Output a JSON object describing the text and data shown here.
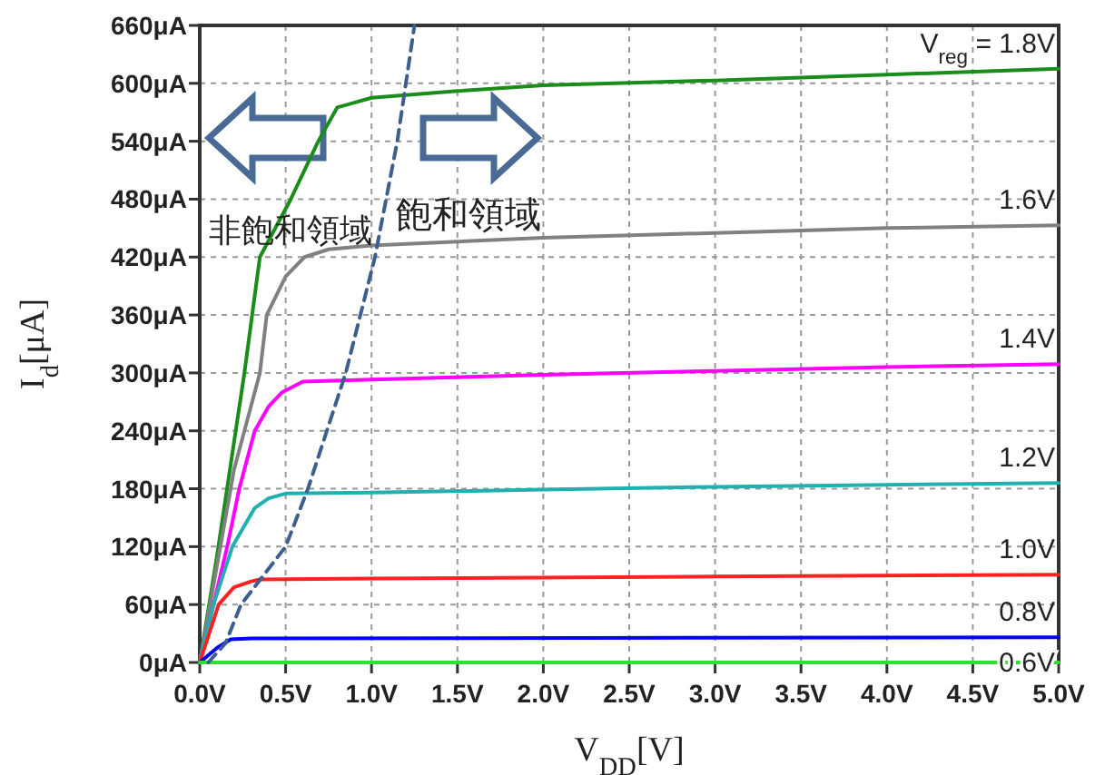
{
  "chart_data": {
    "type": "line",
    "xlabel": "V$_{DD}$[V]",
    "ylabel": "I$_{d}$[μA]",
    "xlim": [
      0,
      5
    ],
    "ylim": [
      0,
      660
    ],
    "xticks": [
      {
        "value": 0,
        "label": "0.0V"
      },
      {
        "value": 0.5,
        "label": "0.5V"
      },
      {
        "value": 1,
        "label": "1.0V"
      },
      {
        "value": 1.5,
        "label": "1.5V"
      },
      {
        "value": 2,
        "label": "2.0V"
      },
      {
        "value": 2.5,
        "label": "2.5V"
      },
      {
        "value": 3,
        "label": "3.0V"
      },
      {
        "value": 3.5,
        "label": "3.5V"
      },
      {
        "value": 4,
        "label": "4.0V"
      },
      {
        "value": 4.5,
        "label": "4.5V"
      },
      {
        "value": 5,
        "label": "5.0V"
      }
    ],
    "yticks": [
      {
        "value": 0,
        "label": "0μA"
      },
      {
        "value": 60,
        "label": "60μA"
      },
      {
        "value": 120,
        "label": "120μA"
      },
      {
        "value": 180,
        "label": "180μA"
      },
      {
        "value": 240,
        "label": "240μA"
      },
      {
        "value": 300,
        "label": "300μA"
      },
      {
        "value": 360,
        "label": "360μA"
      },
      {
        "value": 420,
        "label": "420μA"
      },
      {
        "value": 480,
        "label": "480μA"
      },
      {
        "value": 540,
        "label": "540μA"
      },
      {
        "value": 600,
        "label": "600μA"
      },
      {
        "value": 660,
        "label": "660μA"
      }
    ],
    "grid": true,
    "line_style": "solid",
    "annotations": [
      "非飽和領域",
      "飽和領域"
    ],
    "series": [
      {
        "name": "V$_{reg}$ = 1.8V",
        "color": "#1a8c1a",
        "x": [
          0,
          0.1,
          0.26,
          0.35,
          0.53,
          0.69,
          0.8,
          0.9,
          1,
          1.5,
          2,
          3,
          4,
          5
        ],
        "values": [
          0,
          110,
          300,
          420,
          480,
          540,
          575,
          580,
          585,
          592,
          598,
          603,
          609,
          615
        ]
      },
      {
        "name": "1.6V",
        "color": "#808080",
        "x": [
          0,
          0.1,
          0.2,
          0.35,
          0.39,
          0.5,
          0.61,
          0.75,
          1,
          2,
          3,
          4,
          5
        ],
        "values": [
          0,
          100,
          200,
          300,
          360,
          400,
          420,
          428,
          432,
          440,
          445,
          450,
          453
        ]
      },
      {
        "name": "1.4V",
        "color": "#ff00ff",
        "x": [
          0,
          0.08,
          0.16,
          0.23,
          0.32,
          0.4,
          0.48,
          0.6,
          1,
          2,
          3,
          4,
          5
        ],
        "values": [
          0,
          60,
          120,
          180,
          240,
          265,
          280,
          291,
          293,
          298,
          302,
          306,
          309
        ]
      },
      {
        "name": "1.2V",
        "color": "#20b0b0",
        "x": [
          0,
          0.08,
          0.19,
          0.32,
          0.4,
          0.5,
          1,
          2,
          3,
          4,
          5
        ],
        "values": [
          0,
          60,
          120,
          160,
          170,
          175,
          176,
          179,
          182,
          184,
          186
        ]
      },
      {
        "name": "1.0V",
        "color": "#ff2020",
        "x": [
          0,
          0.11,
          0.2,
          0.3,
          0.35,
          1,
          3,
          5
        ],
        "values": [
          0,
          60,
          78,
          84,
          86,
          87,
          89,
          91
        ]
      },
      {
        "name": "0.8V",
        "color": "#0000ff",
        "x": [
          0,
          0.1,
          0.18,
          0.3,
          5
        ],
        "values": [
          0,
          15,
          24,
          25,
          26
        ]
      },
      {
        "name": "0.6V",
        "color": "#33dd33",
        "x": [
          0,
          5
        ],
        "values": [
          0,
          0
        ]
      },
      {
        "color": "#3d5f8f",
        "line_style": "dashed",
        "x": [
          0.05,
          0.15,
          0.24,
          0.5,
          0.63,
          0.85,
          1.02,
          1.15,
          1.25
        ],
        "values": [
          0,
          20,
          60,
          120,
          180,
          300,
          420,
          540,
          660
        ]
      }
    ]
  }
}
